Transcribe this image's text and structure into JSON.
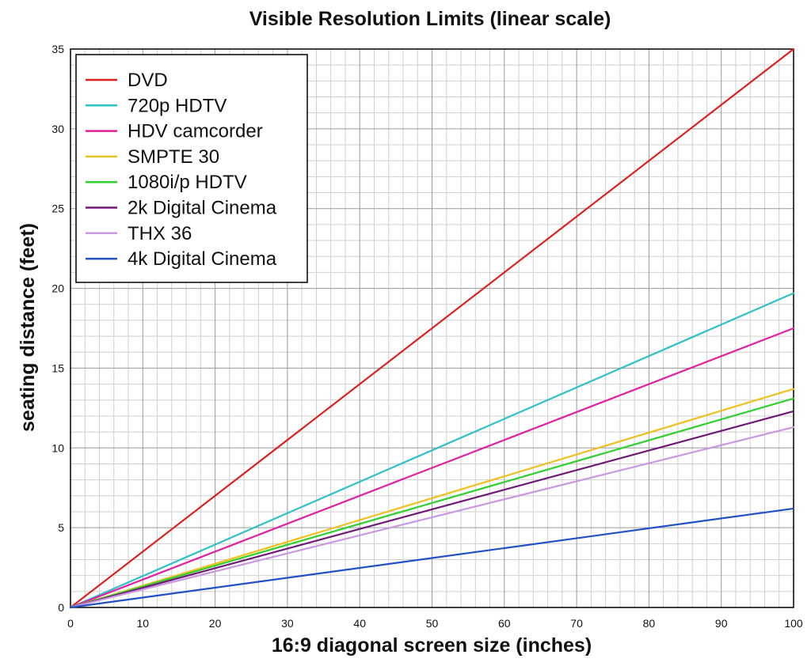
{
  "chart_data": {
    "type": "line",
    "title": "Visible Resolution Limits (linear scale)",
    "xlabel": "16:9 diagonal screen size (inches)",
    "ylabel": "seating distance (feet)",
    "xlim": [
      0,
      100
    ],
    "ylim": [
      0,
      35
    ],
    "x_ticks": [
      0,
      10,
      20,
      30,
      40,
      50,
      60,
      70,
      80,
      90,
      100
    ],
    "y_ticks": [
      0,
      5,
      10,
      15,
      20,
      25,
      30,
      35
    ],
    "x_tick_labels": [
      "0",
      "10",
      "20",
      "30",
      "40",
      "50",
      "60",
      "70",
      "80",
      "90",
      "100"
    ],
    "y_tick_labels": [
      "0",
      "5",
      "10",
      "15",
      "20",
      "25",
      "30",
      "35"
    ],
    "grid": true,
    "grid_minor_x_step": 2,
    "grid_minor_y_step": 1,
    "legend_position": "top-left",
    "x": [
      0,
      100
    ],
    "series": [
      {
        "name": "DVD",
        "color": "#dd2020",
        "values": [
          0,
          35.0
        ]
      },
      {
        "name": "720p HDTV",
        "color": "#30c0c8",
        "values": [
          0,
          19.7
        ]
      },
      {
        "name": "HDV camcorder",
        "color": "#e020a0",
        "values": [
          0,
          17.5
        ]
      },
      {
        "name": "SMPTE 30",
        "color": "#f0c020",
        "values": [
          0,
          13.7
        ]
      },
      {
        "name": "1080i/p HDTV",
        "color": "#30d030",
        "values": [
          0,
          13.1
        ]
      },
      {
        "name": "2k Digital Cinema",
        "color": "#701878",
        "values": [
          0,
          12.3
        ]
      },
      {
        "name": "THX 36",
        "color": "#c898e0",
        "values": [
          0,
          11.3
        ]
      },
      {
        "name": "4k Digital Cinema",
        "color": "#2050c8",
        "values": [
          0,
          6.2
        ]
      }
    ]
  }
}
